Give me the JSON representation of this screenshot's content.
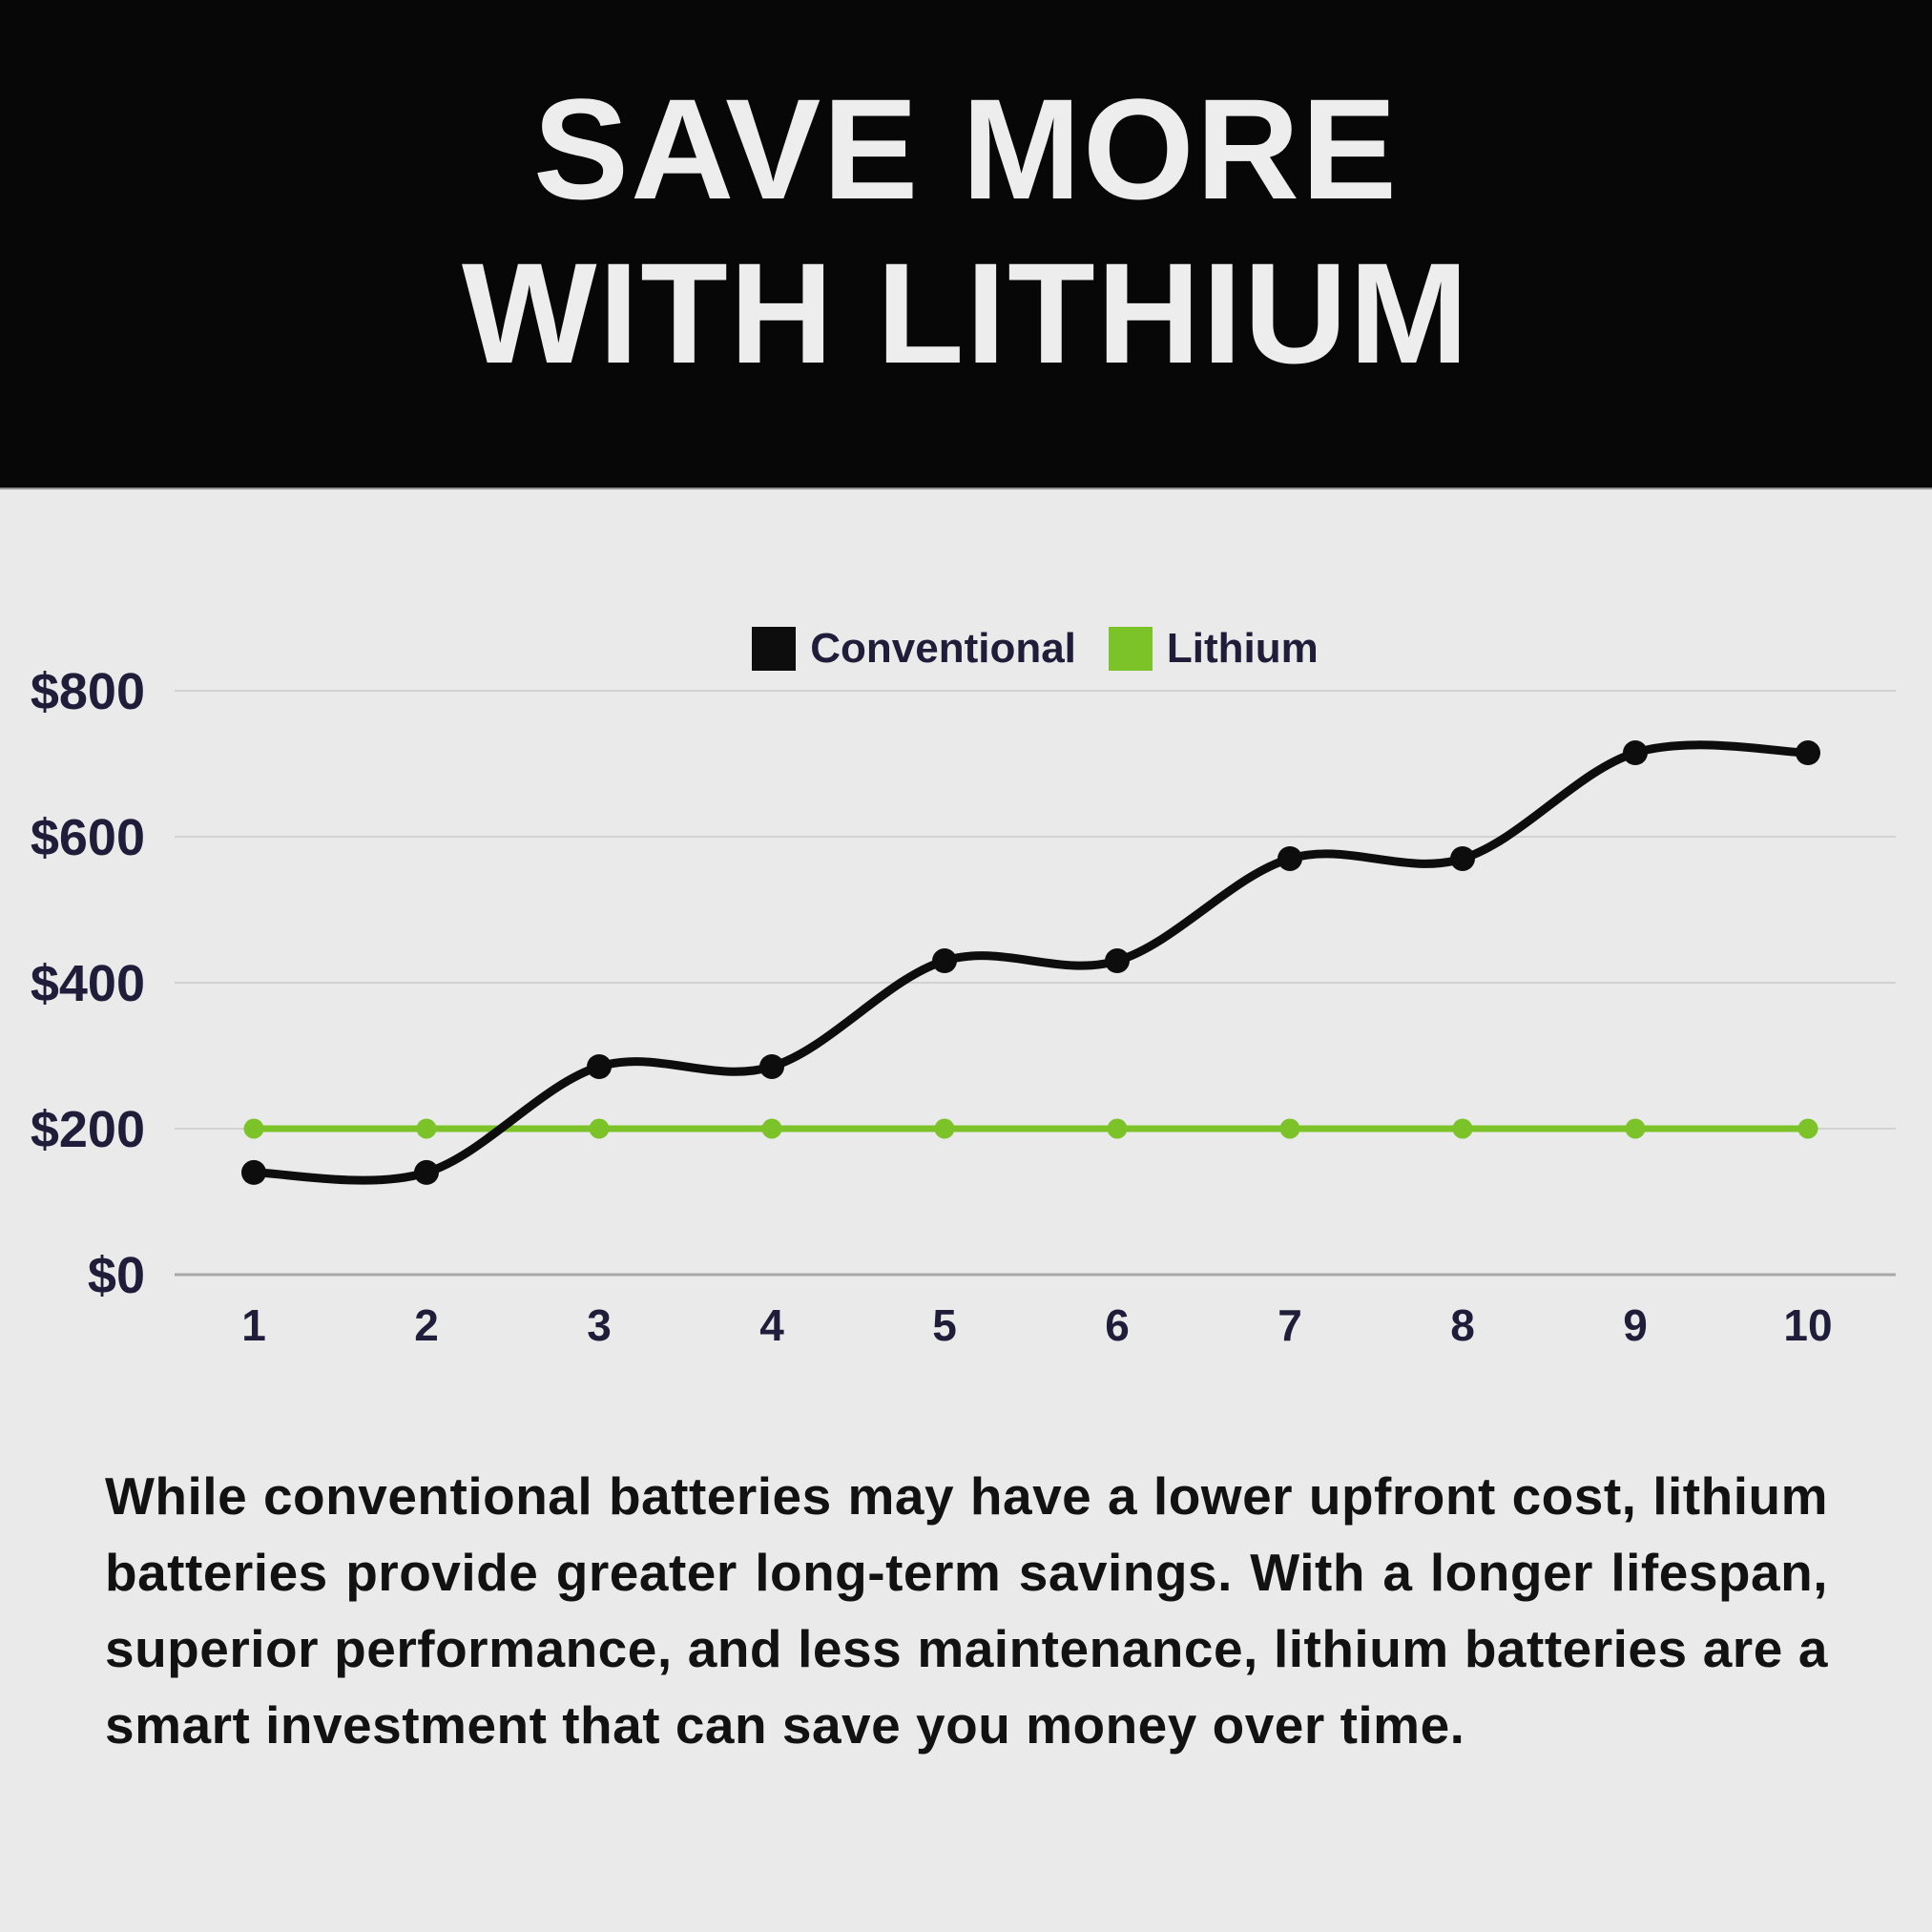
{
  "header": {
    "title_line1": "SAVE MORE",
    "title_line2": "WITH LITHIUM"
  },
  "chart_data": {
    "type": "line",
    "x": [
      1,
      2,
      3,
      4,
      5,
      6,
      7,
      8,
      9,
      10
    ],
    "x_tick_labels": [
      "1",
      "2",
      "3",
      "4",
      "5",
      "6",
      "7",
      "8",
      "9",
      "10"
    ],
    "y_ticks": [
      0,
      200,
      400,
      600,
      800
    ],
    "y_tick_labels": [
      "$0",
      "$200",
      "$400",
      "$600",
      "$800"
    ],
    "ylim": [
      0,
      800
    ],
    "grid": "horizontal",
    "legend_position": "top-center",
    "series": [
      {
        "name": "Conventional",
        "color": "#0d0d0d",
        "values": [
          140,
          140,
          285,
          285,
          430,
          430,
          570,
          570,
          715,
          715
        ]
      },
      {
        "name": "Lithium",
        "color": "#7cc32a",
        "values": [
          200,
          200,
          200,
          200,
          200,
          200,
          200,
          200,
          200,
          200
        ]
      }
    ]
  },
  "body": {
    "paragraph": "While conventional batteries may have a lower upfront cost, lithium batteries provide greater long-term savings. With a longer lifespan, superior performance, and less maintenance, lithium batteries are a smart investment that can save you money over time."
  },
  "colors": {
    "background": "#eaeaea",
    "header": "#070707",
    "title_text": "#ededed",
    "axis_text": "#201d3a",
    "body_text": "#121212",
    "gridline": "#d2d2d2",
    "axis_line": "#a8a8a8"
  }
}
